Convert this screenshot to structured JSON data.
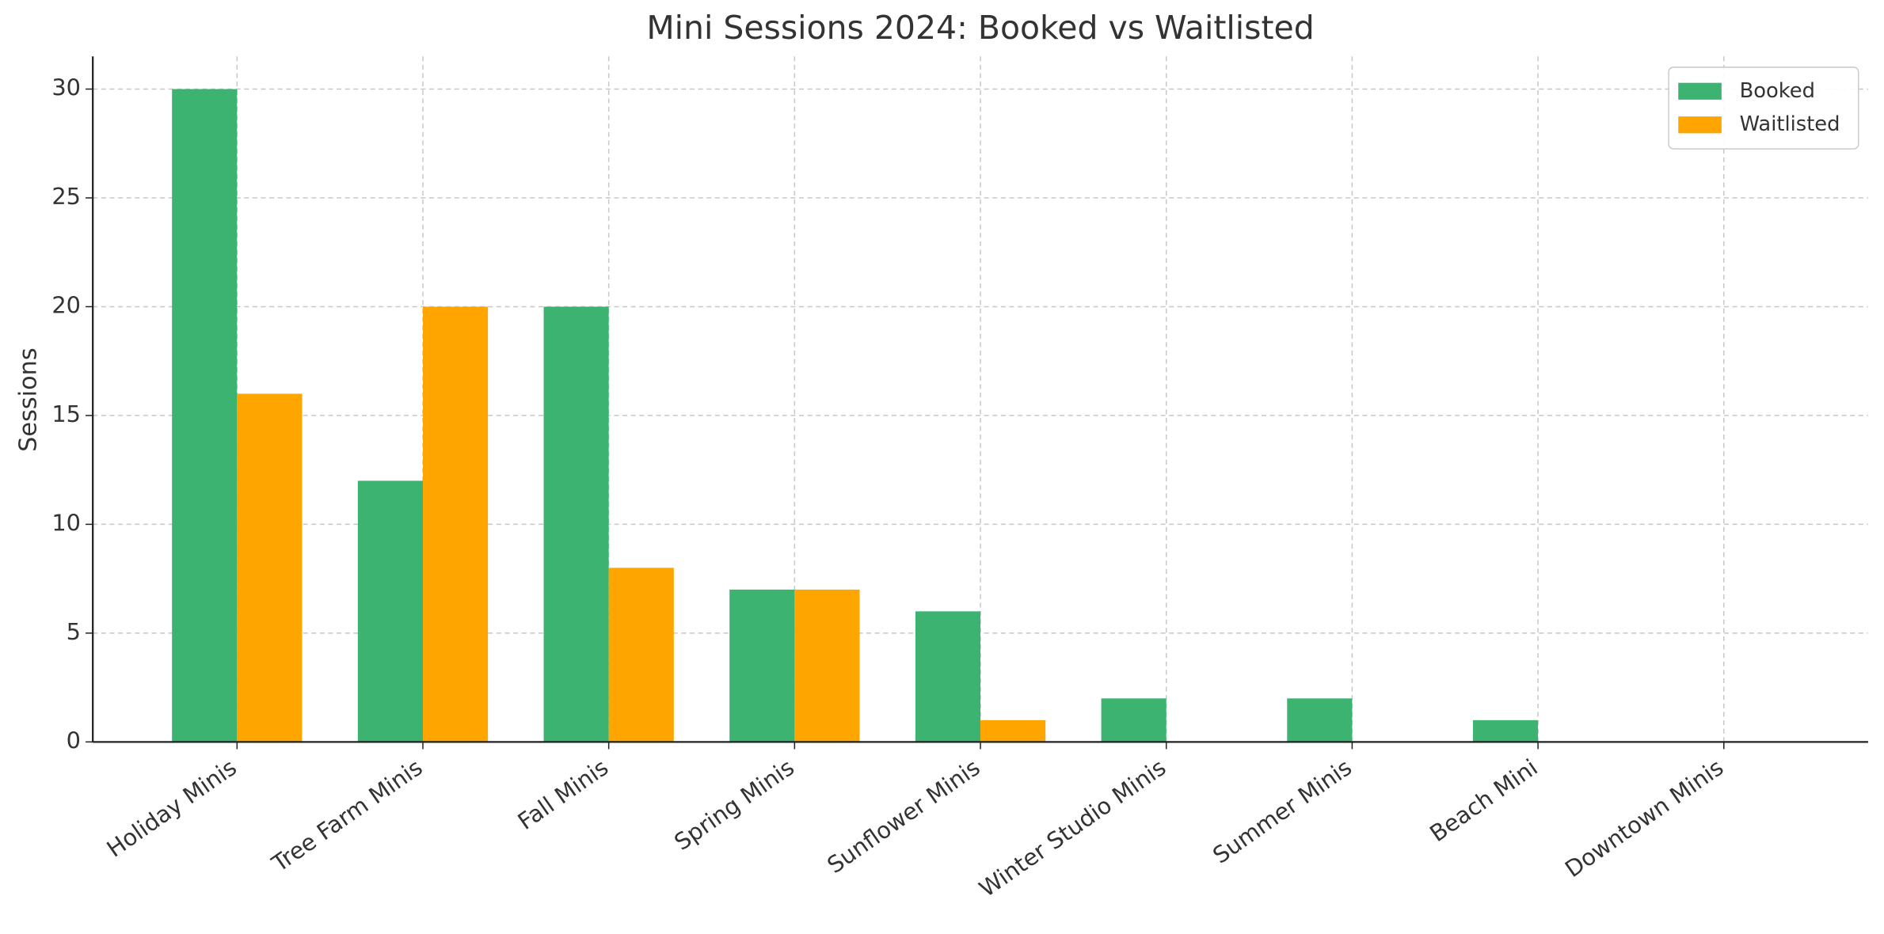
{
  "chart_data": {
    "type": "bar",
    "title": "Mini Sessions 2024: Booked vs Waitlisted",
    "y_label": "Sessions",
    "categories": [
      "Holiday Minis",
      "Tree Farm Minis",
      "Fall Minis",
      "Spring Minis",
      "Sunflower Minis",
      "Winter Studio Minis",
      "Summer Minis",
      "Beach Mini",
      "Downtown Minis"
    ],
    "series": [
      {
        "name": "Booked",
        "color": "#3cb371",
        "values": [
          30,
          12,
          20,
          7,
          6,
          2,
          2,
          1,
          0
        ]
      },
      {
        "name": "Waitlisted",
        "color": "#ffa500",
        "values": [
          16,
          20,
          8,
          7,
          1,
          0,
          0,
          0,
          0
        ]
      }
    ],
    "ylim": [
      0,
      31.5
    ],
    "yticks": [
      0,
      5,
      10,
      15,
      20,
      25,
      30
    ],
    "grid": true,
    "legend": "upper right"
  }
}
